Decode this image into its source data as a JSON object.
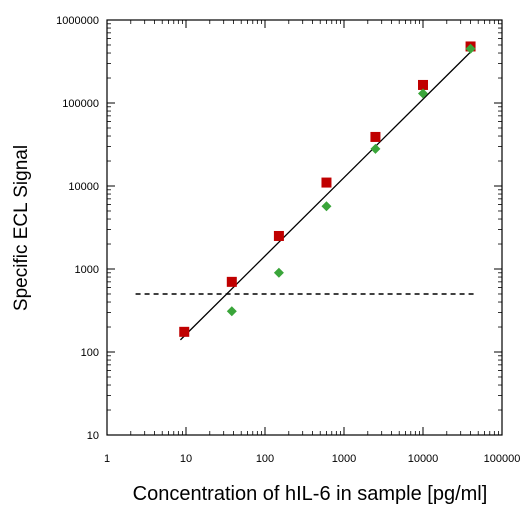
{
  "chart_data": {
    "type": "scatter",
    "xlabel": "Concentration of hIL-6 in sample [pg/ml]",
    "ylabel": "Specific ECL Signal",
    "x_scale": "log",
    "y_scale": "log",
    "xlim": [
      1,
      100000
    ],
    "ylim": [
      10,
      1000000
    ],
    "x_ticks": [
      1,
      10,
      100,
      1000,
      10000,
      100000
    ],
    "x_tick_labels": [
      "1",
      "10",
      "100",
      "1000",
      "10000",
      "100000"
    ],
    "y_ticks": [
      10,
      100,
      1000,
      10000,
      100000,
      1000000
    ],
    "y_tick_labels": [
      "10",
      "100",
      "1000",
      "10000",
      "100000",
      "1000000"
    ],
    "grid": false,
    "series": [
      {
        "marker": "square",
        "color": "#c00000",
        "points": [
          {
            "x": 9.5,
            "y": 175
          },
          {
            "x": 38,
            "y": 700
          },
          {
            "x": 150,
            "y": 2500
          },
          {
            "x": 600,
            "y": 11000
          },
          {
            "x": 2500,
            "y": 39000
          },
          {
            "x": 10000,
            "y": 165000
          },
          {
            "x": 40000,
            "y": 480000
          }
        ]
      },
      {
        "marker": "diamond",
        "color": "#3aa53a",
        "points": [
          {
            "x": 38,
            "y": 310
          },
          {
            "x": 150,
            "y": 900
          },
          {
            "x": 600,
            "y": 5700
          },
          {
            "x": 2500,
            "y": 28000
          },
          {
            "x": 10000,
            "y": 130000
          },
          {
            "x": 40000,
            "y": 450000
          }
        ]
      }
    ],
    "fit_line": {
      "x": [
        8.5,
        45000
      ],
      "y": [
        140,
        460000
      ],
      "color": "#000000"
    },
    "threshold_line": {
      "y": 500,
      "x": [
        2.3,
        45000
      ],
      "style": "dashed",
      "color": "#000000"
    }
  }
}
